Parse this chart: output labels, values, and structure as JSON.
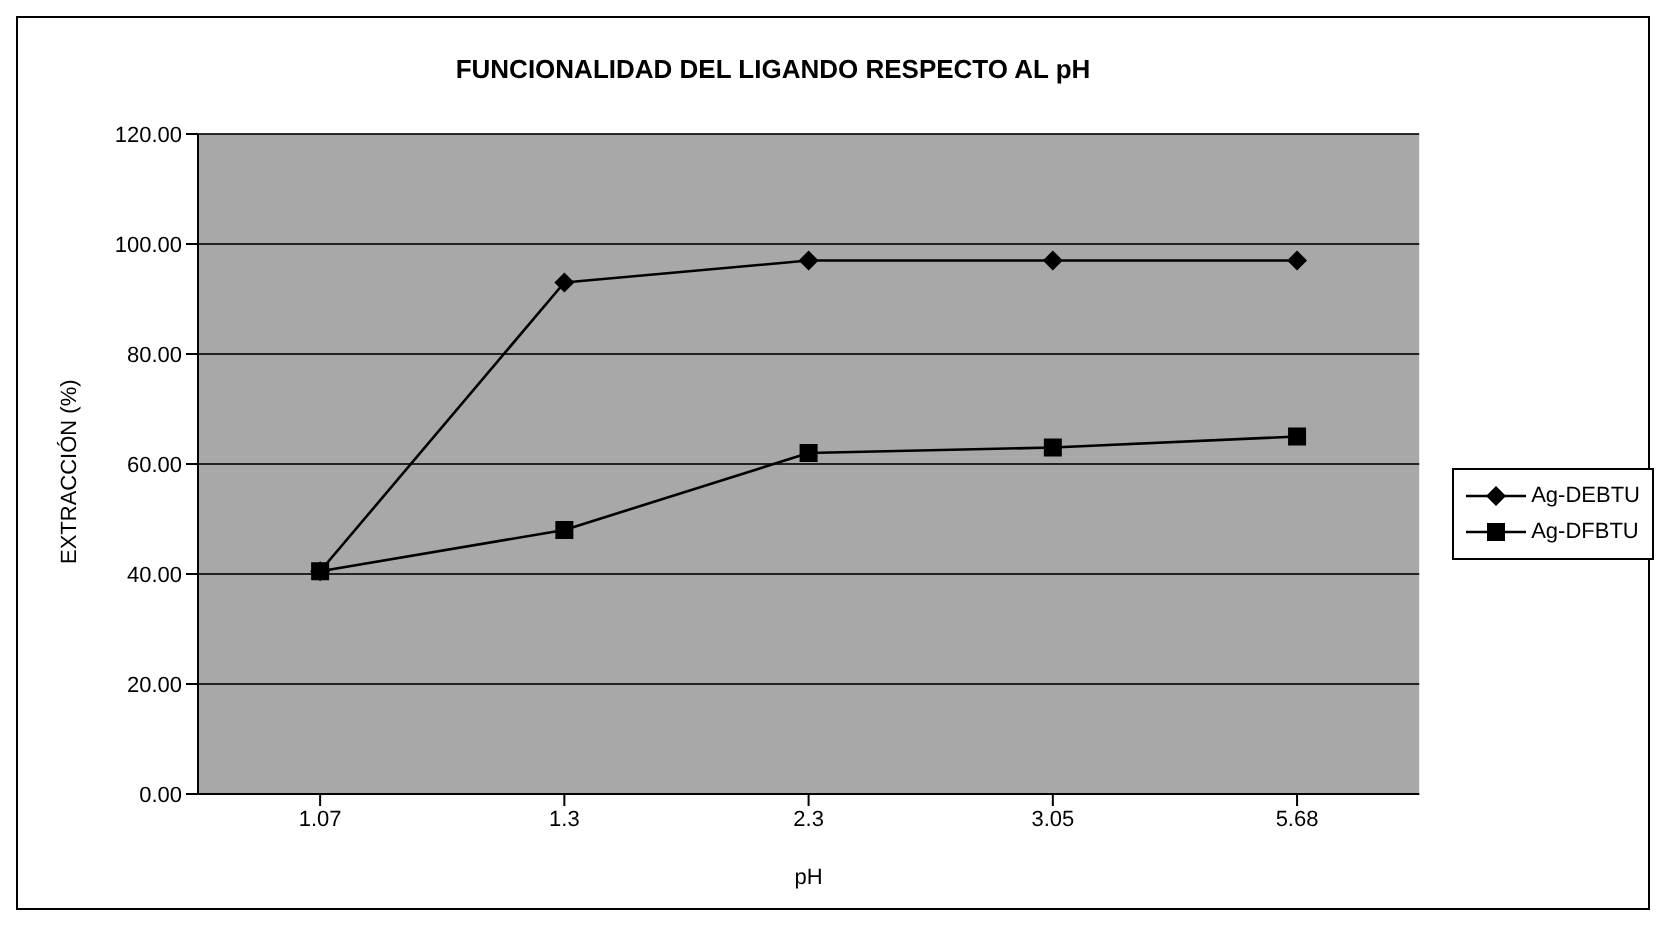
{
  "chart_data": {
    "type": "line",
    "title": "FUNCIONALIDAD DEL LIGANDO RESPECTO AL pH",
    "xlabel": "pH",
    "ylabel": "EXTRACCIÓN (%)",
    "categories": [
      "1.07",
      "1.3",
      "2.3",
      "3.05",
      "5.68"
    ],
    "series": [
      {
        "name": "Ag-DEBTU",
        "color": "#000000",
        "marker": "diamond",
        "values": [
          40.5,
          93,
          97,
          97,
          97
        ]
      },
      {
        "name": "Ag-DFBTU",
        "color": "#000000",
        "marker": "square",
        "values": [
          40.5,
          48,
          62,
          63,
          65
        ]
      }
    ],
    "ylim": [
      0,
      120
    ],
    "yticks": [
      {
        "value": 0,
        "label": "0.00"
      },
      {
        "value": 20,
        "label": "20.00"
      },
      {
        "value": 40,
        "label": "40.00"
      },
      {
        "value": 60,
        "label": "60.00"
      },
      {
        "value": 80,
        "label": "80.00"
      },
      {
        "value": 100,
        "label": "100.00"
      },
      {
        "value": 120,
        "label": "120.00"
      }
    ],
    "grid": "y",
    "legend": "right"
  }
}
